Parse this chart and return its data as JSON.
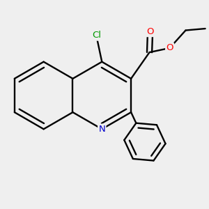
{
  "background_color": "#efefef",
  "bond_color": "#000000",
  "N_color": "#0000cc",
  "O_color": "#ff0000",
  "Cl_color": "#009900",
  "lw": 1.7,
  "dbl_off": 0.052,
  "R": 0.65,
  "R_ph": 0.4,
  "fontsize": 9.5,
  "xlim": [
    -1.65,
    2.35
  ],
  "ylim": [
    -2.1,
    1.75
  ]
}
